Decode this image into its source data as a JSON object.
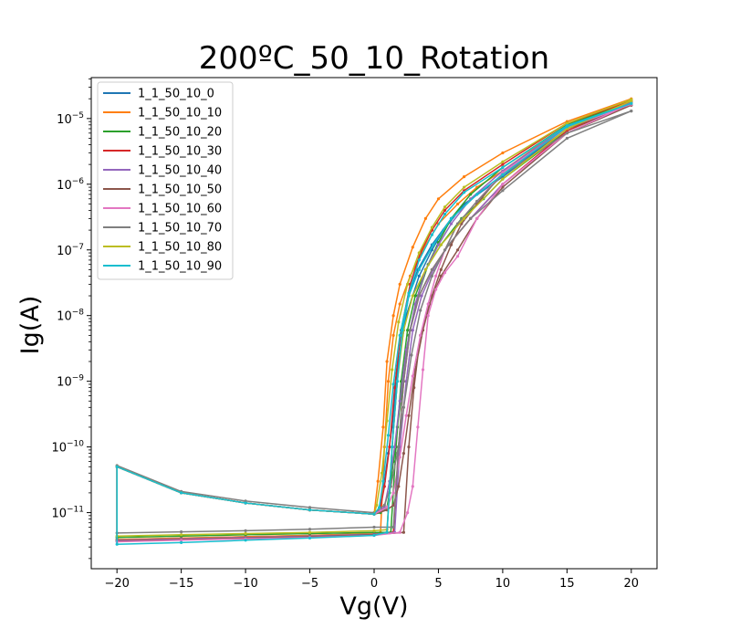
{
  "chart_data": {
    "type": "line",
    "title": "200ºC_50_10_Rotation",
    "xlabel": "Vg(V)",
    "ylabel": "Ig(A)",
    "xlim": [
      -22,
      22
    ],
    "ylim": [
      1.4e-12,
      4.2e-05
    ],
    "yscale": "log",
    "grid": false,
    "legend_position": "upper-left",
    "x_ticks": [
      -20,
      -15,
      -10,
      -5,
      0,
      5,
      10,
      15,
      20
    ],
    "x_tick_labels": [
      "−20",
      "−15",
      "−10",
      "−5",
      "0",
      "5",
      "10",
      "15",
      "20"
    ],
    "y_ticks": [
      {
        "value": 1e-11,
        "mantissa": "10",
        "exp": "−11"
      },
      {
        "value": 1e-10,
        "mantissa": "10",
        "exp": "−10"
      },
      {
        "value": 1e-09,
        "mantissa": "10",
        "exp": "−9"
      },
      {
        "value": 1e-08,
        "mantissa": "10",
        "exp": "−8"
      },
      {
        "value": 1e-07,
        "mantissa": "10",
        "exp": "−7"
      },
      {
        "value": 1e-06,
        "mantissa": "10",
        "exp": "−6"
      },
      {
        "value": 1e-05,
        "mantissa": "10",
        "exp": "−5"
      }
    ],
    "series": [
      {
        "name": "1_1_50_10_0",
        "color": "#1f77b4",
        "rev_x": [
          20,
          15,
          10,
          7.0,
          5.4,
          4.5,
          3.5,
          2.5,
          1.8,
          1.4,
          1.1,
          0.8,
          0.5,
          0.0,
          -5,
          -10,
          -15,
          -20
        ],
        "rev_y": [
          1.7e-05,
          7.5e-06,
          1.3e-06,
          5e-07,
          2e-07,
          1e-07,
          4e-08,
          1e-08,
          1.5e-09,
          2e-10,
          8e-11,
          3e-11,
          1.2e-11,
          9.5e-12,
          1.1e-11,
          1.4e-11,
          2e-11,
          5e-11
        ],
        "fwd_x": [
          -20,
          -15,
          -10,
          -5,
          0,
          1.0,
          1.4,
          1.8,
          2.2,
          2.7,
          3.4,
          4.5,
          6.0,
          8.0,
          10,
          15,
          20
        ],
        "fwd_y": [
          3.9e-12,
          4.1e-12,
          4.3e-12,
          4.5e-12,
          4.8e-12,
          5e-12,
          1e-10,
          1e-09,
          6e-09,
          2e-08,
          5e-08,
          1.2e-07,
          3e-07,
          7e-07,
          1.3e-06,
          7e-06,
          1.65e-05
        ]
      },
      {
        "name": "1_1_50_10_10",
        "color": "#ff7f0e",
        "rev_x": [
          20,
          15,
          10,
          7.0,
          5.0,
          4.0,
          3.0,
          2.0,
          1.5,
          1.0,
          0.7,
          0.3,
          0.0,
          -5,
          -10,
          -15,
          -20
        ],
        "rev_y": [
          2e-05,
          9e-06,
          3e-06,
          1.3e-06,
          6e-07,
          3e-07,
          1.1e-07,
          3e-08,
          1e-08,
          2e-09,
          2e-10,
          3e-11,
          9.5e-12,
          1.1e-11,
          1.4e-11,
          2e-11,
          5e-11
        ],
        "fwd_x": [
          -20,
          -15,
          -10,
          -5,
          0,
          0.5,
          0.8,
          1.1,
          1.5,
          2.0,
          2.8,
          3.8,
          5.0,
          6.5,
          8.0,
          10,
          15,
          20
        ],
        "fwd_y": [
          3.9e-12,
          4.1e-12,
          4.3e-12,
          4.5e-12,
          4.8e-12,
          5e-12,
          1e-10,
          1e-09,
          5e-09,
          1.5e-08,
          4e-08,
          1e-07,
          2.5e-07,
          5e-07,
          9e-07,
          1.6e-06,
          8e-06,
          1.9e-05
        ]
      },
      {
        "name": "1_1_50_10_20",
        "color": "#2ca02c",
        "rev_x": [
          20,
          15,
          10,
          7.5,
          6.0,
          5.0,
          4.2,
          3.4,
          2.7,
          2.2,
          1.8,
          1.5,
          1.2,
          1.0,
          0.5,
          0.0,
          -5,
          -10,
          -15,
          -20
        ],
        "rev_y": [
          1.8e-05,
          8e-06,
          1.8e-06,
          7e-07,
          3e-07,
          1.3e-07,
          6e-08,
          2e-08,
          5e-09,
          8e-10,
          2e-10,
          6e-11,
          2e-11,
          1.2e-11,
          1e-11,
          9.5e-12,
          1.1e-11,
          1.4e-11,
          2e-11,
          5e-11
        ],
        "fwd_x": [
          -20,
          -15,
          -10,
          -5,
          0,
          1.3,
          1.7,
          2.1,
          2.6,
          3.2,
          4.0,
          5.2,
          6.8,
          8.5,
          10,
          15,
          20
        ],
        "fwd_y": [
          4.2e-12,
          4.4e-12,
          4.6e-12,
          4.8e-12,
          5e-12,
          5e-12,
          1e-10,
          1e-09,
          6e-09,
          2e-08,
          5e-08,
          1.2e-07,
          3e-07,
          6e-07,
          1.2e-06,
          6.5e-06,
          1.7e-05
        ]
      },
      {
        "name": "1_1_50_10_30",
        "color": "#d62728",
        "rev_x": [
          20,
          15,
          10,
          7.0,
          5.5,
          4.5,
          3.6,
          2.8,
          2.1,
          1.6,
          1.2,
          0.8,
          0.5,
          0.0,
          -5,
          -10,
          -15,
          -20
        ],
        "rev_y": [
          1.85e-05,
          8.5e-06,
          2e-06,
          8e-07,
          4e-07,
          2e-07,
          9e-08,
          3e-08,
          6e-09,
          8e-10,
          1e-10,
          2.5e-11,
          1.2e-11,
          9.5e-12,
          1.1e-11,
          1.4e-11,
          2e-11,
          5e-11
        ],
        "fwd_x": [
          -20,
          -15,
          -10,
          -5,
          0,
          1.5,
          1.9,
          2.3,
          2.8,
          3.5,
          4.5,
          5.8,
          7.5,
          10,
          15,
          20
        ],
        "fwd_y": [
          3.7e-12,
          3.9e-12,
          4.1e-12,
          4.3e-12,
          4.6e-12,
          5e-12,
          1e-10,
          1e-09,
          6e-09,
          2e-08,
          5e-08,
          1.2e-07,
          3e-07,
          1e-06,
          6.5e-06,
          1.75e-05
        ]
      },
      {
        "name": "1_1_50_10_40",
        "color": "#9467bd",
        "rev_x": [
          20,
          15,
          10,
          7.5,
          6.0,
          5.0,
          4.0,
          3.2,
          2.5,
          2.0,
          1.6,
          1.2,
          0.8,
          0.0,
          -5,
          -10,
          -15,
          -20
        ],
        "rev_y": [
          1.75e-05,
          7.5e-06,
          1.6e-06,
          6e-07,
          2.5e-07,
          1.2e-07,
          5e-08,
          1.5e-08,
          3e-09,
          5e-10,
          1e-10,
          3e-11,
          1.2e-11,
          9.5e-12,
          1.1e-11,
          1.4e-11,
          2e-11,
          5e-11
        ],
        "fwd_x": [
          -20,
          -15,
          -10,
          -5,
          0,
          1.6,
          2.0,
          2.5,
          3.0,
          3.7,
          4.6,
          5.8,
          7.5,
          10,
          15,
          20
        ],
        "fwd_y": [
          3.8e-12,
          4e-12,
          4.2e-12,
          4.4e-12,
          4.7e-12,
          5e-12,
          1e-10,
          1e-09,
          6e-09,
          2e-08,
          5e-08,
          1.2e-07,
          3e-07,
          1e-06,
          6e-06,
          1.7e-05
        ]
      },
      {
        "name": "1_1_50_10_50",
        "color": "#8c564b",
        "rev_x": [
          20,
          15,
          10,
          8.0,
          6.8,
          6.0,
          5.2,
          4.5,
          3.8,
          3.2,
          2.7,
          2.3,
          1.9,
          1.5,
          1.0,
          0.0,
          -5,
          -10,
          -15,
          -20
        ],
        "rev_y": [
          1.6e-05,
          7e-06,
          1.5e-06,
          5e-07,
          2.5e-07,
          1.2e-07,
          5e-08,
          2e-08,
          6e-09,
          1.5e-09,
          3e-10,
          8e-11,
          2.5e-11,
          1.3e-11,
          1.1e-11,
          9.5e-12,
          1.1e-11,
          1.4e-11,
          2e-11,
          5e-11
        ],
        "fwd_x": [
          -20,
          -15,
          -10,
          -5,
          0,
          2.3,
          2.7,
          3.1,
          3.6,
          4.3,
          5.2,
          6.5,
          8.0,
          10,
          15,
          20
        ],
        "fwd_y": [
          3.7e-12,
          3.9e-12,
          4.1e-12,
          4.3e-12,
          4.6e-12,
          5e-12,
          1e-10,
          8e-10,
          5e-09,
          1.5e-08,
          4e-08,
          1e-07,
          3e-07,
          9e-07,
          6e-06,
          1.6e-05
        ]
      },
      {
        "name": "1_1_50_10_60",
        "color": "#e377c2",
        "rev_x": [
          20,
          15,
          10,
          8.0,
          6.5,
          5.5,
          4.8,
          4.2,
          3.6,
          3.0,
          2.5,
          2.0,
          1.5,
          1.0,
          0.0,
          -5,
          -10,
          -15,
          -20
        ],
        "rev_y": [
          1.65e-05,
          7.2e-06,
          1.5e-06,
          5.5e-07,
          2.5e-07,
          1e-07,
          4e-08,
          1.5e-08,
          5e-09,
          1.2e-09,
          3e-10,
          7e-11,
          2e-11,
          1.2e-11,
          9.5e-12,
          1.1e-11,
          1.4e-11,
          2e-11,
          5e-11
        ],
        "fwd_x": [
          -20,
          -15,
          -10,
          -5,
          0,
          2.0,
          2.6,
          3.0,
          3.4,
          3.8,
          4.2,
          4.8,
          5.5,
          6.5,
          8.0,
          10,
          15,
          20
        ],
        "fwd_y": [
          3.6e-12,
          3.8e-12,
          4e-12,
          4.2e-12,
          4.5e-12,
          5e-12,
          1e-11,
          2.5e-11,
          2e-10,
          1.5e-09,
          1e-08,
          2.5e-08,
          4.5e-08,
          8e-08,
          3e-07,
          1e-06,
          6e-06,
          1.7e-05
        ]
      },
      {
        "name": "1_1_50_10_70",
        "color": "#7f7f7f",
        "rev_x": [
          20,
          15,
          10,
          8.0,
          6.5,
          5.5,
          4.5,
          3.6,
          2.9,
          2.3,
          1.8,
          1.3,
          0.8,
          0.0,
          -5,
          -10,
          -15,
          -20
        ],
        "rev_y": [
          1.3e-05,
          6e-06,
          1.4e-06,
          5.5e-07,
          2.5e-07,
          1e-07,
          4e-08,
          1.2e-08,
          2.5e-09,
          4e-10,
          8e-11,
          2.5e-11,
          1.3e-11,
          1e-11,
          1.2e-11,
          1.5e-11,
          2.1e-11,
          5.2e-11
        ],
        "fwd_x": [
          -20,
          -15,
          -10,
          -5,
          0,
          1.5,
          1.9,
          2.3,
          2.8,
          3.5,
          4.5,
          5.8,
          7.5,
          10,
          15,
          20
        ],
        "fwd_y": [
          4.9e-12,
          5.1e-12,
          5.3e-12,
          5.6e-12,
          6e-12,
          6e-12,
          1e-10,
          1e-09,
          6e-09,
          2e-08,
          5e-08,
          1.2e-07,
          3e-07,
          8e-07,
          5e-06,
          1.3e-05
        ]
      },
      {
        "name": "1_1_50_10_80",
        "color": "#bcbd22",
        "rev_x": [
          20,
          15,
          10,
          7.0,
          5.5,
          4.5,
          3.5,
          2.6,
          1.9,
          1.4,
          1.0,
          0.6,
          0.2,
          0.0,
          -5,
          -10,
          -15,
          -20
        ],
        "rev_y": [
          1.95e-05,
          8.5e-06,
          2.2e-06,
          9e-07,
          4.5e-07,
          2.2e-07,
          9e-08,
          3e-08,
          8e-09,
          1.5e-09,
          2.5e-10,
          4e-11,
          1.3e-11,
          9.5e-12,
          1.1e-11,
          1.4e-11,
          2e-11,
          5e-11
        ],
        "fwd_x": [
          -20,
          -15,
          -10,
          -5,
          0,
          1.0,
          1.4,
          1.8,
          2.3,
          3.0,
          4.0,
          5.2,
          7.0,
          10,
          15,
          20
        ],
        "fwd_y": [
          4.4e-12,
          4.6e-12,
          4.8e-12,
          5e-12,
          5.3e-12,
          5.5e-12,
          1e-10,
          1e-09,
          6e-09,
          2e-08,
          5e-08,
          1.2e-07,
          3e-07,
          1.2e-06,
          7e-06,
          1.85e-05
        ]
      },
      {
        "name": "1_1_50_10_90",
        "color": "#17becf",
        "rev_x": [
          20,
          15,
          10,
          7.0,
          5.5,
          4.5,
          3.5,
          2.7,
          2.0,
          1.5,
          1.1,
          0.7,
          0.4,
          0.0,
          -5,
          -10,
          -15,
          -20
        ],
        "rev_y": [
          1.7e-05,
          7.8e-06,
          1.8e-06,
          7.5e-07,
          3.5e-07,
          1.7e-07,
          7e-08,
          2.2e-08,
          5e-09,
          9e-10,
          1.5e-10,
          3e-11,
          1.2e-11,
          9.5e-12,
          1.1e-11,
          1.4e-11,
          2e-11,
          5e-11
        ],
        "fwd_x": [
          -20,
          -15,
          -10,
          -5,
          0,
          1.0,
          1.4,
          1.8,
          2.2,
          2.7,
          3.5,
          4.6,
          6.0,
          8.0,
          10,
          15,
          20
        ],
        "fwd_y": [
          3.3e-12,
          3.5e-12,
          3.8e-12,
          4.1e-12,
          4.5e-12,
          5e-12,
          1e-10,
          1e-09,
          6e-09,
          2e-08,
          5e-08,
          1.2e-07,
          3e-07,
          7e-07,
          1.4e-06,
          7.5e-06,
          1.7e-05
        ]
      }
    ]
  }
}
